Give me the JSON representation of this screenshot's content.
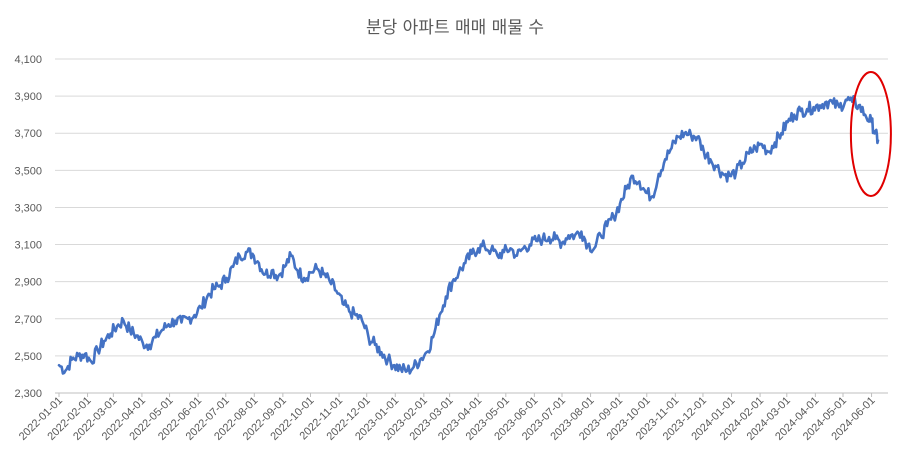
{
  "chart_data": {
    "type": "line",
    "title": "분당 아파트 매매 매물 수",
    "xlabel": "",
    "ylabel": "",
    "ylim": [
      2300,
      4100
    ],
    "y_ticks": [
      "2,300",
      "2,500",
      "2,700",
      "2,900",
      "3,100",
      "3,300",
      "3,500",
      "3,700",
      "3,900",
      "4,100"
    ],
    "y_tick_values": [
      2300,
      2500,
      2700,
      2900,
      3100,
      3300,
      3500,
      3700,
      3900,
      4100
    ],
    "x_ticks": [
      "2022-01-01",
      "2022-02-01",
      "2022-03-01",
      "2022-04-01",
      "2022-05-01",
      "2022-06-01",
      "2022-07-01",
      "2022-08-01",
      "2022-09-01",
      "2022-10-01",
      "2022-11-01",
      "2022-12-01",
      "2023-01-01",
      "2023-02-01",
      "2023-03-01",
      "2023-04-01",
      "2023-05-01",
      "2023-06-01",
      "2023-07-01",
      "2023-08-01",
      "2023-09-01",
      "2023-10-01",
      "2023-11-01",
      "2023-12-01",
      "2024-01-01",
      "2024-02-01",
      "2024-03-01",
      "2024-04-01",
      "2024-05-01",
      "2024-06-01"
    ],
    "grid": true,
    "legend": "none",
    "line_color": "#4472c4",
    "annotation": {
      "shape": "ellipse",
      "color": "#e00000",
      "around": "2024-05-15 to 2024-06-08"
    },
    "series": [
      {
        "x": [
          "2022-01-01",
          "2022-01-08",
          "2022-01-15",
          "2022-01-22",
          "2022-01-29",
          "2022-02-05",
          "2022-02-12",
          "2022-02-19",
          "2022-02-26",
          "2022-03-05",
          "2022-03-12",
          "2022-03-19",
          "2022-03-26",
          "2022-04-02",
          "2022-04-09",
          "2022-04-16",
          "2022-04-23",
          "2022-04-30",
          "2022-05-07",
          "2022-05-14",
          "2022-05-21",
          "2022-05-28",
          "2022-06-04",
          "2022-06-11",
          "2022-06-18",
          "2022-06-25",
          "2022-07-02",
          "2022-07-09",
          "2022-07-16",
          "2022-07-23",
          "2022-07-30",
          "2022-08-06",
          "2022-08-13",
          "2022-08-20",
          "2022-08-27",
          "2022-09-03",
          "2022-09-10",
          "2022-09-17",
          "2022-09-24",
          "2022-10-01",
          "2022-10-08",
          "2022-10-15",
          "2022-10-22",
          "2022-10-29",
          "2022-11-05",
          "2022-11-12",
          "2022-11-19",
          "2022-11-26",
          "2022-12-03",
          "2022-12-10",
          "2022-12-17",
          "2022-12-24",
          "2022-12-31",
          "2023-01-07",
          "2023-01-14",
          "2023-01-21",
          "2023-01-28",
          "2023-02-04",
          "2023-02-11",
          "2023-02-18",
          "2023-02-25",
          "2023-03-04",
          "2023-03-11",
          "2023-03-18",
          "2023-03-25",
          "2023-04-01",
          "2023-04-08",
          "2023-04-15",
          "2023-04-22",
          "2023-04-29",
          "2023-05-06",
          "2023-05-13",
          "2023-05-20",
          "2023-05-27",
          "2023-06-03",
          "2023-06-10",
          "2023-06-17",
          "2023-06-24",
          "2023-07-01",
          "2023-07-08",
          "2023-07-15",
          "2023-07-22",
          "2023-07-29",
          "2023-08-05",
          "2023-08-12",
          "2023-08-19",
          "2023-08-26",
          "2023-09-02",
          "2023-09-09",
          "2023-09-16",
          "2023-09-23",
          "2023-09-30",
          "2023-10-07",
          "2023-10-14",
          "2023-10-21",
          "2023-10-28",
          "2023-11-04",
          "2023-11-11",
          "2023-11-18",
          "2023-11-25",
          "2023-12-02",
          "2023-12-09",
          "2023-12-16",
          "2023-12-23",
          "2023-12-30",
          "2024-01-06",
          "2024-01-13",
          "2024-01-20",
          "2024-01-27",
          "2024-02-03",
          "2024-02-10",
          "2024-02-17",
          "2024-02-24",
          "2024-03-02",
          "2024-03-09",
          "2024-03-16",
          "2024-03-23",
          "2024-03-30",
          "2024-04-06",
          "2024-04-13",
          "2024-04-20",
          "2024-04-27",
          "2024-05-04",
          "2024-05-11",
          "2024-05-18",
          "2024-05-25",
          "2024-06-01",
          "2024-06-05",
          "2024-06-08"
        ],
        "values": [
          2450,
          2420,
          2480,
          2500,
          2510,
          2470,
          2530,
          2580,
          2620,
          2660,
          2690,
          2640,
          2610,
          2570,
          2560,
          2600,
          2640,
          2670,
          2690,
          2680,
          2700,
          2720,
          2760,
          2820,
          2860,
          2880,
          2920,
          2980,
          3040,
          3060,
          3050,
          3000,
          2940,
          2960,
          2930,
          2980,
          3040,
          2960,
          2920,
          2950,
          2970,
          2940,
          2900,
          2850,
          2780,
          2740,
          2720,
          2690,
          2600,
          2560,
          2520,
          2480,
          2450,
          2430,
          2420,
          2440,
          2480,
          2520,
          2600,
          2720,
          2820,
          2900,
          2950,
          3000,
          3050,
          3080,
          3090,
          3070,
          3040,
          3060,
          3080,
          3040,
          3080,
          3100,
          3120,
          3130,
          3140,
          3130,
          3110,
          3150,
          3150,
          3170,
          3100,
          3080,
          3150,
          3200,
          3250,
          3320,
          3400,
          3470,
          3440,
          3380,
          3360,
          3480,
          3560,
          3620,
          3680,
          3700,
          3690,
          3680,
          3600,
          3560,
          3520,
          3480,
          3470,
          3490,
          3540,
          3590,
          3620,
          3640,
          3600,
          3650,
          3700,
          3760,
          3800,
          3820,
          3830,
          3840,
          3850,
          3870,
          3860,
          3840,
          3880,
          3870,
          3850,
          3800,
          3760,
          3700,
          3660
        ]
      }
    ]
  }
}
